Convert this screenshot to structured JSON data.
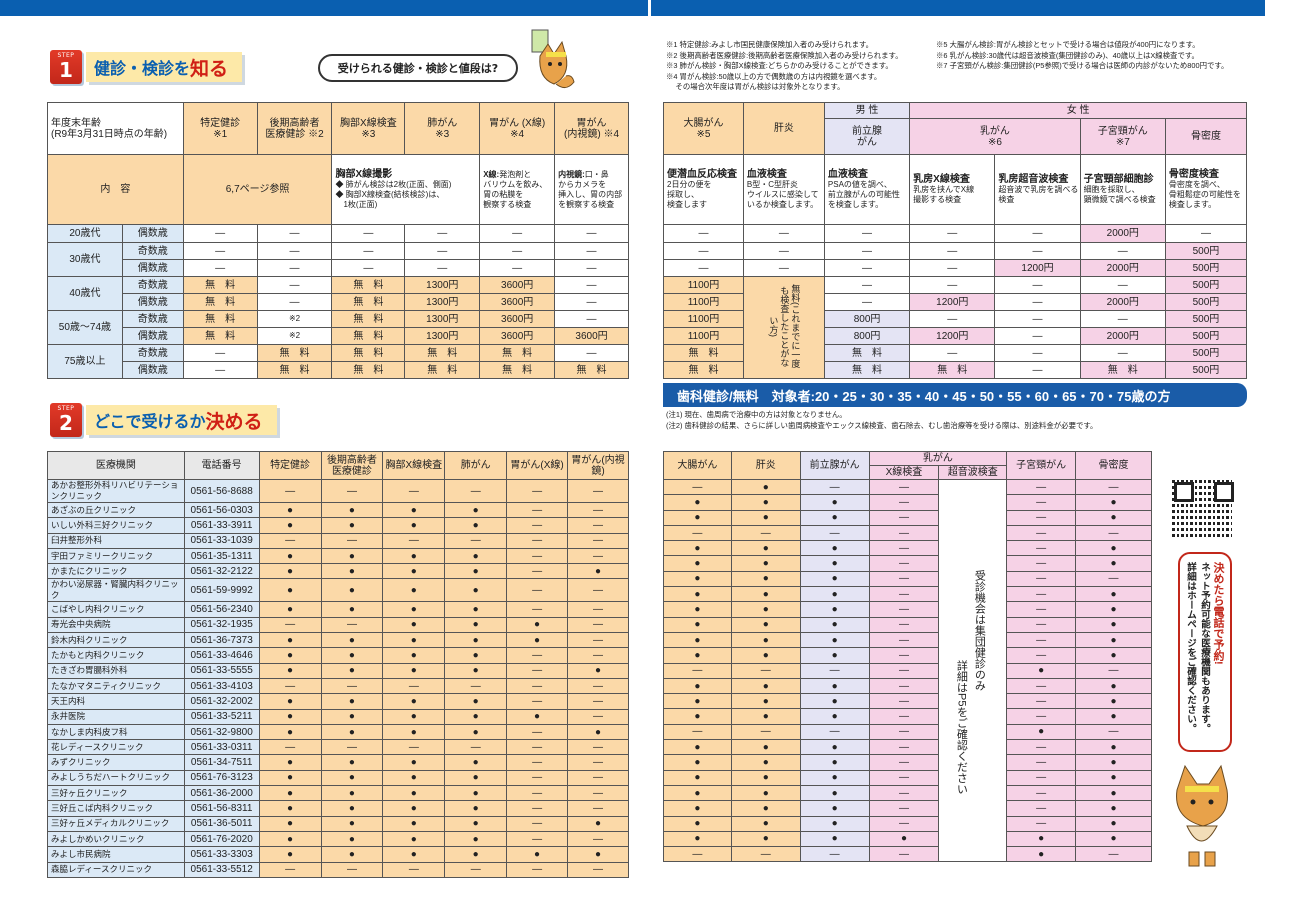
{
  "step1": {
    "step": "STEP",
    "num": "1",
    "title_a": "健診・検診を",
    "title_b": "知る"
  },
  "step2": {
    "step": "STEP",
    "num": "2",
    "title_a": "どこで受けるか",
    "title_b": "決める"
  },
  "bubble": "受けられる健診・検診と値段は?",
  "notes_left": [
    "※1 特定健診:みよし市国民健康保険加入者のみ受けられます。",
    "※2 後期高齢者医療健診:後期高齢者医療保険加入者のみ受けられます。",
    "※3 肺がん検診・胸部X線検査:どちらかのみ受けることができます。",
    "※4 胃がん検診:50歳以上の方で偶数歳の方は内視鏡を選べます。",
    "　 その場合次年度は胃がん検診は対象外となります。"
  ],
  "notes_right": [
    "※5 大腸がん検診:胃がん検診とセットで受ける場合は値段が400円になります。",
    "※6 乳がん検診:30歳代は超音波検査(集団健診のみ)、40歳以上はX線検査です。",
    "※7 子宮頸がん検診:集団健診(P5参照)で受ける場合は医師の内診がないため800円です。"
  ],
  "t1": {
    "h_age": "年度末年齢",
    "h_age2": "(R9年3月31日時点の年齢)",
    "cols": [
      "特定健診",
      "※1",
      "後期高齢者",
      "医療健診 ※2",
      "胸部X線検査",
      "※3",
      "肺がん",
      "※3",
      "胃がん (X線)",
      "※4",
      "胃がん",
      "(内視鏡) ※4"
    ],
    "content": "内　容",
    "c_ref": "6,7ページ参照",
    "c_chest_t": "胸部X線撮影",
    "c_chest1": "◆ 肺がん検診は2枚(正面、側面)",
    "c_chest2": "◆ 胸部X線検査(結核検診)は、",
    "c_chest3": "　1枚(正面)",
    "c_xray_t": "X線:",
    "c_xray1": "発泡剤と",
    "c_xray2": "バリウムを飲み、",
    "c_xray3": "胃の粘膜を",
    "c_xray4": "観察する検査",
    "c_endo_t": "内視鏡:",
    "c_endo1": "口・鼻",
    "c_endo2": "からカメラを",
    "c_endo3": "挿入し、胃の内部",
    "c_endo4": "を観察する検査",
    "ages": [
      "20歳代",
      "30歳代",
      "40歳代",
      "50歳〜74歳",
      "75歳以上"
    ],
    "odd": "奇数歳",
    "even": "偶数歳",
    "rows": [
      [
        "—",
        "—",
        "—",
        "—",
        "—",
        "—"
      ],
      [
        "—",
        "—",
        "—",
        "—",
        "—",
        "—"
      ],
      [
        "—",
        "—",
        "—",
        "—",
        "—",
        "—"
      ],
      [
        "無　料",
        "—",
        "無　料",
        "1300円",
        "3600円",
        "—"
      ],
      [
        "無　料",
        "—",
        "無　料",
        "1300円",
        "3600円",
        "—"
      ],
      [
        "無　料",
        "※2",
        "無　料",
        "1300円",
        "3600円",
        "—"
      ],
      [
        "無　料",
        "※2",
        "無　料",
        "1300円",
        "3600円",
        "3600円"
      ],
      [
        "—",
        "無　料",
        "無　料",
        "無　料",
        "無　料",
        "—"
      ],
      [
        "—",
        "無　料",
        "無　料",
        "無　料",
        "無　料",
        "無　料"
      ]
    ]
  },
  "t2": {
    "cols": [
      "大腸がん",
      "※5",
      "肝炎",
      "男 性",
      "前立腺",
      "がん",
      "女 性",
      "乳がん",
      "※6",
      "子宮頸がん",
      "※7",
      "骨密度"
    ],
    "c1t": "便潜血反応検査",
    "c1a": "2日分の便を",
    "c1b": "採取し、",
    "c1c": "検査します",
    "c2t": "血液検査",
    "c2a": "B型・C型肝炎",
    "c2b": "ウイルスに感染して",
    "c2c": "いるか検査します。",
    "c3t": "血液検査",
    "c3a": "PSAの値を調べ、",
    "c3b": "前立腺がんの可能性",
    "c3c": "を検査します。",
    "c4t": "乳房X線検査",
    "c4a": "乳房を挟んでX線",
    "c4b": "撮影する検査",
    "c5t": "乳房超音波検査",
    "c5a": "超音波で乳房を調べる",
    "c5b": "検査",
    "c6t": "子宮頸部細胞診",
    "c6a": "細胞を採取し、",
    "c6b": "顕微鏡で調べる検査",
    "c7t": "骨密度検査",
    "c7a": "骨密度を調べ、",
    "c7b": "骨粗鬆症の可能性を",
    "c7c": "検査します。",
    "liver": "無料(これまでに一度も検査したことがない方)",
    "rows": [
      [
        "—",
        "—",
        "—",
        "—",
        "—",
        "2000円",
        "—"
      ],
      [
        "—",
        "—",
        "—",
        "—",
        "—",
        "—",
        "500円"
      ],
      [
        "—",
        "—",
        "—",
        "—",
        "1200円",
        "2000円",
        "500円"
      ],
      [
        "1100円",
        "",
        "—",
        "—",
        "—",
        "—",
        "500円"
      ],
      [
        "1100円",
        "",
        "—",
        "1200円",
        "—",
        "2000円",
        "500円"
      ],
      [
        "1100円",
        "",
        "800円",
        "—",
        "—",
        "—",
        "500円"
      ],
      [
        "1100円",
        "",
        "800円",
        "1200円",
        "—",
        "2000円",
        "500円"
      ],
      [
        "無　料",
        "",
        "無　料",
        "—",
        "—",
        "—",
        "500円"
      ],
      [
        "無　料",
        "",
        "無　料",
        "無　料",
        "—",
        "無　料",
        "500円"
      ]
    ]
  },
  "dental": "歯科健診/無料　対象者:20・25・30・35・40・45・50・55・60・65・70・75歳の方",
  "dental_notes": [
    "(注1) 現在、歯周病で治療中の方は対象となりません。",
    "(注2) 歯科健診の結果、さらに詳しい歯周病検査やエックス線検査、歯石除去、むし歯治療等を受ける際は、別途料金が必要です。"
  ],
  "t3": {
    "cols": [
      "医療機関",
      "電話番号",
      "特定健診",
      "後期高齢者医療健診",
      "胸部X線検査",
      "肺がん",
      "胃がん(X線)",
      "胃がん(内視鏡)"
    ],
    "rows": [
      [
        "あかお整形外科リハビリテーションクリニック",
        "0561-56-8688",
        "—",
        "—",
        "—",
        "—",
        "—",
        "—"
      ],
      [
        "あざぶの丘クリニック",
        "0561-56-0303",
        "●",
        "●",
        "●",
        "●",
        "—",
        "—"
      ],
      [
        "いしい外科三好クリニック",
        "0561-33-3911",
        "●",
        "●",
        "●",
        "●",
        "—",
        "—"
      ],
      [
        "臼井整形外科",
        "0561-33-1039",
        "—",
        "—",
        "—",
        "—",
        "—",
        "—"
      ],
      [
        "宇田ファミリークリニック",
        "0561-35-1311",
        "●",
        "●",
        "●",
        "●",
        "—",
        "—"
      ],
      [
        "かまたにクリニック",
        "0561-32-2122",
        "●",
        "●",
        "●",
        "●",
        "—",
        "●"
      ],
      [
        "かわい泌尿器・腎臓内科クリニック",
        "0561-59-9992",
        "●",
        "●",
        "●",
        "●",
        "—",
        "—"
      ],
      [
        "こばやし内科クリニック",
        "0561-56-2340",
        "●",
        "●",
        "●",
        "●",
        "—",
        "—"
      ],
      [
        "寿光会中央病院",
        "0561-32-1935",
        "—",
        "—",
        "●",
        "●",
        "●",
        "—"
      ],
      [
        "鈴木内科クリニック",
        "0561-36-7373",
        "●",
        "●",
        "●",
        "●",
        "●",
        "—"
      ],
      [
        "たかもと内科クリニック",
        "0561-33-4646",
        "●",
        "●",
        "●",
        "●",
        "—",
        "—"
      ],
      [
        "たきざわ胃腸科外科",
        "0561-33-5555",
        "●",
        "●",
        "●",
        "●",
        "—",
        "●"
      ],
      [
        "たなかマタニティクリニック",
        "0561-33-4103",
        "—",
        "—",
        "—",
        "—",
        "—",
        "—"
      ],
      [
        "天王内科",
        "0561-32-2002",
        "●",
        "●",
        "●",
        "●",
        "—",
        "—"
      ],
      [
        "永井医院",
        "0561-33-5211",
        "●",
        "●",
        "●",
        "●",
        "●",
        "—"
      ],
      [
        "なかしま内科皮フ科",
        "0561-32-9800",
        "●",
        "●",
        "●",
        "●",
        "—",
        "●"
      ],
      [
        "花レディースクリニック",
        "0561-33-0311",
        "—",
        "—",
        "—",
        "—",
        "—",
        "—"
      ],
      [
        "みずクリニック",
        "0561-34-7511",
        "●",
        "●",
        "●",
        "●",
        "—",
        "—"
      ],
      [
        "みよしうちだハートクリニック",
        "0561-76-3123",
        "●",
        "●",
        "●",
        "●",
        "—",
        "—"
      ],
      [
        "三好ヶ丘クリニック",
        "0561-36-2000",
        "●",
        "●",
        "●",
        "●",
        "—",
        "—"
      ],
      [
        "三好丘こば内科クリニック",
        "0561-56-8311",
        "●",
        "●",
        "●",
        "●",
        "—",
        "—"
      ],
      [
        "三好ヶ丘メディカルクリニック",
        "0561-36-5011",
        "●",
        "●",
        "●",
        "●",
        "—",
        "●"
      ],
      [
        "みよしかめいクリニック",
        "0561-76-2020",
        "●",
        "●",
        "●",
        "●",
        "—",
        "—"
      ],
      [
        "みよし市民病院",
        "0561-33-3303",
        "●",
        "●",
        "●",
        "●",
        "●",
        "●"
      ],
      [
        "森脇レディースクリニック",
        "0561-33-5512",
        "—",
        "—",
        "—",
        "—",
        "—",
        "—"
      ]
    ]
  },
  "t4": {
    "cols": [
      "大腸がん",
      "肝炎",
      "前立腺がん",
      "乳がん",
      "X線検査",
      "超音波検査",
      "子宮頸がん",
      "骨密度"
    ],
    "vert1": "受診機会は集団健診のみ",
    "vert2": "詳細はP5をご確認ください",
    "rows": [
      [
        "—",
        "●",
        "—",
        "—",
        "—",
        "—"
      ],
      [
        "●",
        "●",
        "●",
        "—",
        "—",
        "●"
      ],
      [
        "●",
        "●",
        "●",
        "—",
        "—",
        "●"
      ],
      [
        "—",
        "—",
        "—",
        "—",
        "—",
        "—"
      ],
      [
        "●",
        "●",
        "●",
        "—",
        "—",
        "●"
      ],
      [
        "●",
        "●",
        "●",
        "—",
        "—",
        "●"
      ],
      [
        "●",
        "●",
        "●",
        "—",
        "—",
        "—"
      ],
      [
        "●",
        "●",
        "●",
        "—",
        "—",
        "●"
      ],
      [
        "●",
        "●",
        "●",
        "—",
        "—",
        "●"
      ],
      [
        "●",
        "●",
        "●",
        "—",
        "—",
        "●"
      ],
      [
        "●",
        "●",
        "●",
        "—",
        "—",
        "●"
      ],
      [
        "●",
        "●",
        "●",
        "—",
        "—",
        "●"
      ],
      [
        "—",
        "—",
        "—",
        "—",
        "●",
        "—"
      ],
      [
        "●",
        "●",
        "●",
        "—",
        "—",
        "●"
      ],
      [
        "●",
        "●",
        "●",
        "—",
        "—",
        "●"
      ],
      [
        "●",
        "●",
        "●",
        "—",
        "—",
        "●"
      ],
      [
        "—",
        "—",
        "—",
        "—",
        "●",
        "—"
      ],
      [
        "●",
        "●",
        "●",
        "—",
        "—",
        "●"
      ],
      [
        "●",
        "●",
        "●",
        "—",
        "—",
        "●"
      ],
      [
        "●",
        "●",
        "●",
        "—",
        "—",
        "●"
      ],
      [
        "●",
        "●",
        "●",
        "—",
        "—",
        "●"
      ],
      [
        "●",
        "●",
        "●",
        "—",
        "—",
        "●"
      ],
      [
        "●",
        "●",
        "●",
        "—",
        "—",
        "●"
      ],
      [
        "●",
        "●",
        "●",
        "●",
        "●",
        "●"
      ],
      [
        "—",
        "—",
        "—",
        "—",
        "●",
        "—"
      ]
    ]
  },
  "callout1": "決めたら電話で予約!",
  "callout2": "ネット予約可能な医療機関もあります。",
  "callout3": "詳細はホームページをご確認ください。"
}
